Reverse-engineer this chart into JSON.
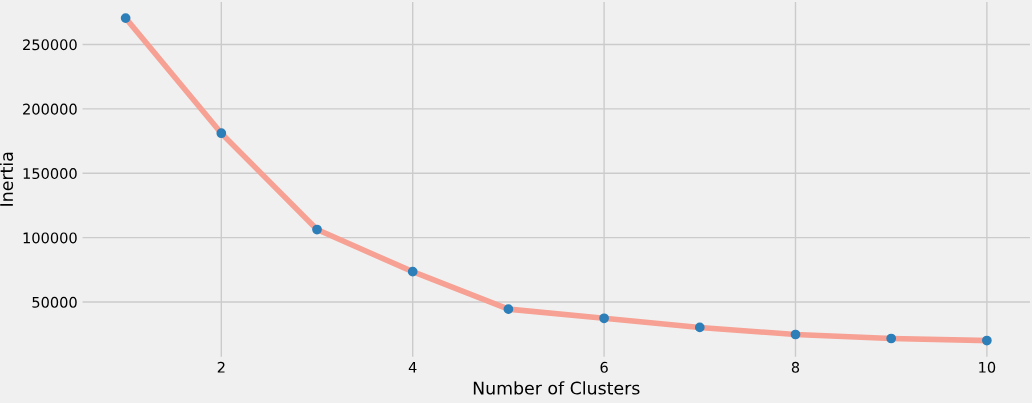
{
  "chart_data": {
    "type": "line",
    "xlabel": "Number of Clusters",
    "ylabel": "Inertia",
    "x": [
      1,
      2,
      3,
      4,
      5,
      6,
      7,
      8,
      9,
      10
    ],
    "series": [
      {
        "type": "scatter",
        "color": "#2c7fb8",
        "values": [
          270500,
          181100,
          106300,
          73600,
          44500,
          37400,
          30300,
          24800,
          21700,
          20100
        ]
      },
      {
        "color": "#f6a193",
        "values": [
          270500,
          181100,
          106300,
          73600,
          44500,
          37400,
          30300,
          24800,
          21700,
          20100
        ]
      }
    ],
    "xlim": [
      0.55,
      10.45
    ],
    "xticks": [
      2,
      4,
      6,
      8,
      10
    ],
    "ylim": [
      7600,
      283000
    ],
    "yticks": [
      50000,
      100000,
      150000,
      200000,
      250000
    ],
    "grid": true
  }
}
